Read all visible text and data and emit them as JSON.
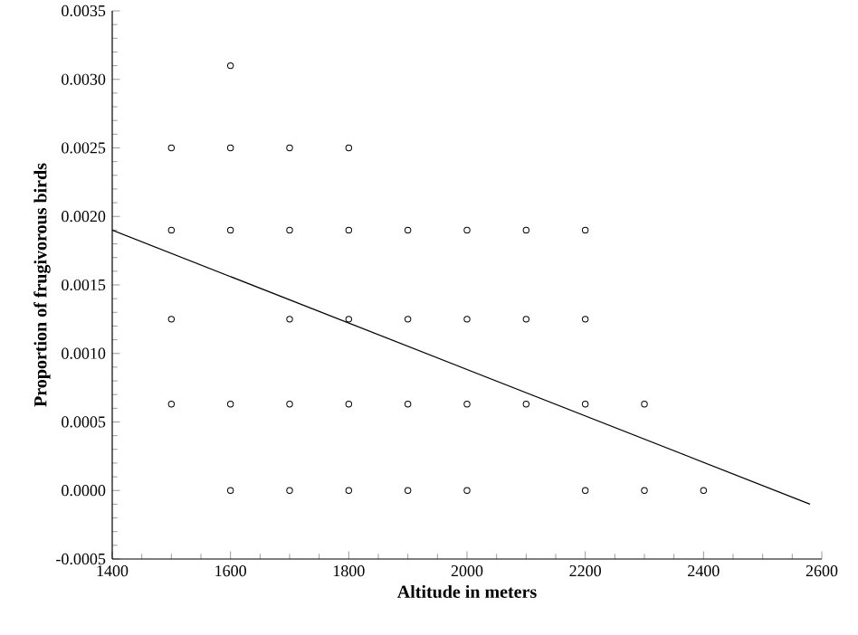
{
  "chart_data": {
    "type": "scatter",
    "xlabel": "Altitude in meters",
    "ylabel": "Proportion of frugivorous birds",
    "xlim": [
      1400,
      2600
    ],
    "xticks": [
      1400,
      1600,
      1800,
      2000,
      2200,
      2400,
      2600
    ],
    "ylim": [
      -0.0005,
      0.0035
    ],
    "yticks": [
      {
        "value": -0.0005,
        "label": "-0.0005"
      },
      {
        "value": 0,
        "label": "0.0000"
      },
      {
        "value": 0.0005,
        "label": "0.0005"
      },
      {
        "value": 0.001,
        "label": "0.0010"
      },
      {
        "value": 0.0015,
        "label": "0.0015"
      },
      {
        "value": 0.002,
        "label": "0.0020"
      },
      {
        "value": 0.0025,
        "label": "0.0025"
      },
      {
        "value": 0.003,
        "label": "0.0030"
      },
      {
        "value": 0.0035,
        "label": "0.0035"
      }
    ],
    "marker": "circle",
    "series": [
      {
        "color": "#000000",
        "x": [
          1600,
          1500,
          1600,
          1700,
          1800,
          1500,
          1600,
          1700,
          1800,
          1900,
          2000,
          2100,
          2200,
          1500,
          1700,
          1800,
          1900,
          2000,
          2100,
          2200,
          1500,
          1600,
          1700,
          1800,
          1900,
          2000,
          2100,
          2200,
          2300,
          1600,
          1700,
          1800,
          1900,
          2000,
          2200,
          2300,
          2400
        ],
        "values": [
          0.0031,
          0.0025,
          0.0025,
          0.0025,
          0.0025,
          0.0019,
          0.0019,
          0.0019,
          0.0019,
          0.0019,
          0.0019,
          0.0019,
          0.0019,
          0.00125,
          0.00125,
          0.00125,
          0.00125,
          0.00125,
          0.00125,
          0.00125,
          0.00063,
          0.00063,
          0.00063,
          0.00063,
          0.00063,
          0.00063,
          0.00063,
          0.00063,
          0.00063,
          0,
          0,
          0,
          0,
          0,
          0,
          0,
          0
        ]
      },
      {
        "type": "line",
        "color": "#000000",
        "marker": "none",
        "line_style": "solid",
        "x": [
          1400,
          2580
        ],
        "values": [
          0.0019,
          -0.0001
        ]
      }
    ]
  }
}
